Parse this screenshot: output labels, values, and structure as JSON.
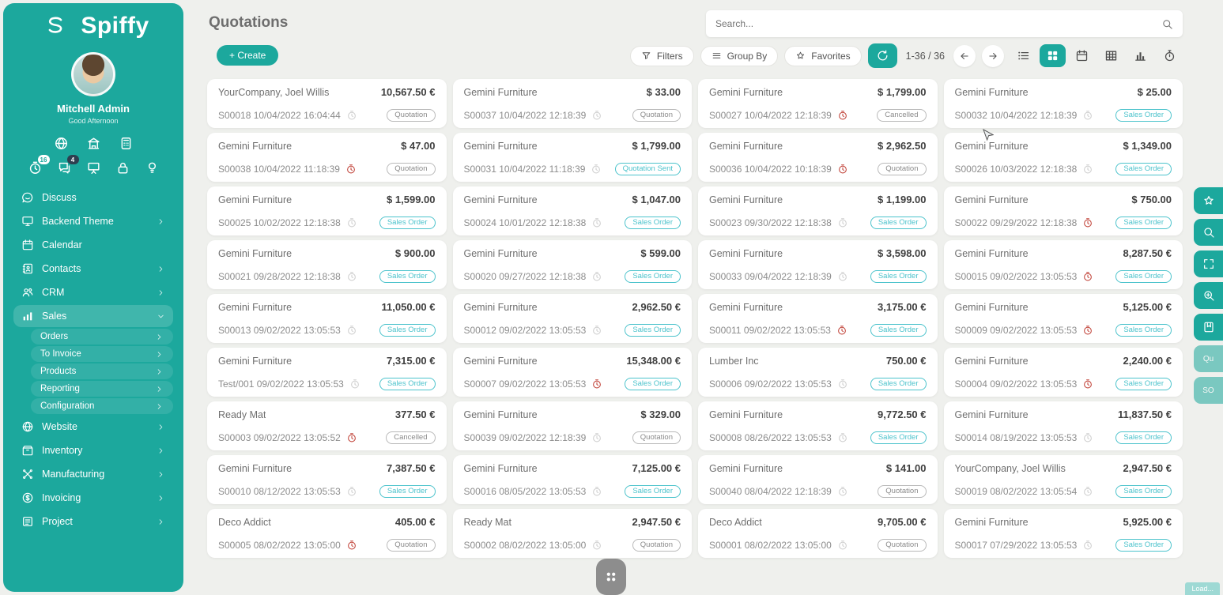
{
  "theme": {
    "accent": "#1ca89d",
    "badge_teal": "#4cc3cc",
    "badge_gray": "#9a9a9a",
    "overdue_red": "#c2453b"
  },
  "sidebar": {
    "brand": "Spiffy",
    "user_name": "Mitchell Admin",
    "greeting": "Good Afternoon",
    "quick_icons": [
      {
        "name": "globe-icon",
        "icon": "website"
      },
      {
        "name": "company-icon",
        "icon": "company"
      },
      {
        "name": "calculator-icon",
        "icon": "calculator"
      }
    ],
    "notification_icons": [
      {
        "name": "activity-clock-icon",
        "icon": "clock",
        "badge": "16"
      },
      {
        "name": "messages-icon",
        "icon": "chat",
        "badge": "4",
        "badge_dark": true
      },
      {
        "name": "presentation-icon",
        "icon": "presentation"
      },
      {
        "name": "lock-icon",
        "icon": "lock"
      },
      {
        "name": "idea-icon",
        "icon": "idea"
      }
    ],
    "menu": [
      {
        "label": "Discuss",
        "icon": "discuss",
        "chevron": null,
        "level": 1
      },
      {
        "label": "Backend Theme",
        "icon": "backend-theme",
        "chevron": "right",
        "level": 1
      },
      {
        "label": "Calendar",
        "icon": "calendar",
        "chevron": null,
        "level": 1
      },
      {
        "label": "Contacts",
        "icon": "contacts",
        "chevron": "right",
        "level": 1
      },
      {
        "label": "CRM",
        "icon": "crm",
        "chevron": "right",
        "level": 1
      },
      {
        "label": "Sales",
        "icon": "sales",
        "chevron": "down",
        "level": 1,
        "active": true
      },
      {
        "label": "Orders",
        "chevron": "right",
        "level": 2
      },
      {
        "label": "To Invoice",
        "chevron": "right",
        "level": 2
      },
      {
        "label": "Products",
        "chevron": "right",
        "level": 2
      },
      {
        "label": "Reporting",
        "chevron": "right",
        "level": 2
      },
      {
        "label": "Configuration",
        "chevron": "right",
        "level": 2
      },
      {
        "label": "Website",
        "icon": "website",
        "chevron": "right",
        "level": 1
      },
      {
        "label": "Inventory",
        "icon": "inventory",
        "chevron": "right",
        "level": 1
      },
      {
        "label": "Manufacturing",
        "icon": "manufacturing",
        "chevron": "right",
        "level": 1
      },
      {
        "label": "Invoicing",
        "icon": "invoicing",
        "chevron": "right",
        "level": 1
      },
      {
        "label": "Project",
        "icon": "project",
        "chevron": "right",
        "level": 1
      }
    ]
  },
  "header": {
    "title": "Quotations",
    "create_label": "+ Create",
    "search_placeholder": "Search..."
  },
  "controls": {
    "filters": "Filters",
    "group_by": "Group By",
    "favorites": "Favorites",
    "pager": "1-36 / 36",
    "views": [
      {
        "icon": "list",
        "name": "list-view"
      },
      {
        "icon": "kanban",
        "name": "kanban-view",
        "active": true
      },
      {
        "icon": "calendar",
        "name": "calendar-view"
      },
      {
        "icon": "pivot",
        "name": "pivot-view"
      },
      {
        "icon": "graph",
        "name": "graph-view"
      },
      {
        "icon": "stopwatch",
        "name": "activity-view"
      }
    ]
  },
  "rail": [
    {
      "icon": "star",
      "name": "favorites-rail-button"
    },
    {
      "icon": "magnifier",
      "name": "search-rail-button"
    },
    {
      "icon": "expand",
      "name": "fullscreen-rail-button"
    },
    {
      "icon": "magnifier-plus",
      "name": "zoom-in-rail-button"
    },
    {
      "icon": "bookmark",
      "name": "bookmark-rail-button"
    },
    {
      "label": "Qu",
      "name": "rail-tab-quotations",
      "muted": true
    },
    {
      "label": "SO",
      "name": "rail-tab-sales-orders",
      "muted": true
    }
  ],
  "footer": {
    "load_label": "Load..."
  },
  "cards": [
    {
      "customer": "YourCompany, Joel Willis",
      "amount": "10,567.50 €",
      "ref": "S00018",
      "datetime": "10/04/2022 16:04:44",
      "overdue": false,
      "badge": "Quotation",
      "badge_style": "gray"
    },
    {
      "customer": "Gemini Furniture",
      "amount": "$ 33.00",
      "ref": "S00037",
      "datetime": "10/04/2022 12:18:39",
      "overdue": false,
      "badge": "Quotation",
      "badge_style": "gray"
    },
    {
      "customer": "Gemini Furniture",
      "amount": "$ 1,799.00",
      "ref": "S00027",
      "datetime": "10/04/2022 12:18:39",
      "overdue": true,
      "badge": "Cancelled",
      "badge_style": "gray"
    },
    {
      "customer": "Gemini Furniture",
      "amount": "$ 25.00",
      "ref": "S00032",
      "datetime": "10/04/2022 12:18:39",
      "overdue": false,
      "badge": "Sales Order",
      "badge_style": "teal"
    },
    {
      "customer": "Gemini Furniture",
      "amount": "$ 47.00",
      "ref": "S00038",
      "datetime": "10/04/2022 11:18:39",
      "overdue": true,
      "badge": "Quotation",
      "badge_style": "gray"
    },
    {
      "customer": "Gemini Furniture",
      "amount": "$ 1,799.00",
      "ref": "S00031",
      "datetime": "10/04/2022 11:18:39",
      "overdue": false,
      "badge": "Quotation Sent",
      "badge_style": "teal"
    },
    {
      "customer": "Gemini Furniture",
      "amount": "$ 2,962.50",
      "ref": "S00036",
      "datetime": "10/04/2022 10:18:39",
      "overdue": true,
      "badge": "Quotation",
      "badge_style": "gray"
    },
    {
      "customer": "Gemini Furniture",
      "amount": "$ 1,349.00",
      "ref": "S00026",
      "datetime": "10/03/2022 12:18:38",
      "overdue": false,
      "badge": "Sales Order",
      "badge_style": "teal"
    },
    {
      "customer": "Gemini Furniture",
      "amount": "$ 1,599.00",
      "ref": "S00025",
      "datetime": "10/02/2022 12:18:38",
      "overdue": false,
      "badge": "Sales Order",
      "badge_style": "teal"
    },
    {
      "customer": "Gemini Furniture",
      "amount": "$ 1,047.00",
      "ref": "S00024",
      "datetime": "10/01/2022 12:18:38",
      "overdue": false,
      "badge": "Sales Order",
      "badge_style": "teal"
    },
    {
      "customer": "Gemini Furniture",
      "amount": "$ 1,199.00",
      "ref": "S00023",
      "datetime": "09/30/2022 12:18:38",
      "overdue": false,
      "badge": "Sales Order",
      "badge_style": "teal"
    },
    {
      "customer": "Gemini Furniture",
      "amount": "$ 750.00",
      "ref": "S00022",
      "datetime": "09/29/2022 12:18:38",
      "overdue": true,
      "badge": "Sales Order",
      "badge_style": "teal"
    },
    {
      "customer": "Gemini Furniture",
      "amount": "$ 900.00",
      "ref": "S00021",
      "datetime": "09/28/2022 12:18:38",
      "overdue": false,
      "badge": "Sales Order",
      "badge_style": "teal"
    },
    {
      "customer": "Gemini Furniture",
      "amount": "$ 599.00",
      "ref": "S00020",
      "datetime": "09/27/2022 12:18:38",
      "overdue": false,
      "badge": "Sales Order",
      "badge_style": "teal"
    },
    {
      "customer": "Gemini Furniture",
      "amount": "$ 3,598.00",
      "ref": "S00033",
      "datetime": "09/04/2022 12:18:39",
      "overdue": false,
      "badge": "Sales Order",
      "badge_style": "teal"
    },
    {
      "customer": "Gemini Furniture",
      "amount": "8,287.50 €",
      "ref": "S00015",
      "datetime": "09/02/2022 13:05:53",
      "overdue": true,
      "badge": "Sales Order",
      "badge_style": "teal"
    },
    {
      "customer": "Gemini Furniture",
      "amount": "11,050.00 €",
      "ref": "S00013",
      "datetime": "09/02/2022 13:05:53",
      "overdue": false,
      "badge": "Sales Order",
      "badge_style": "teal"
    },
    {
      "customer": "Gemini Furniture",
      "amount": "2,962.50 €",
      "ref": "S00012",
      "datetime": "09/02/2022 13:05:53",
      "overdue": false,
      "badge": "Sales Order",
      "badge_style": "teal"
    },
    {
      "customer": "Gemini Furniture",
      "amount": "3,175.00 €",
      "ref": "S00011",
      "datetime": "09/02/2022 13:05:53",
      "overdue": true,
      "badge": "Sales Order",
      "badge_style": "teal"
    },
    {
      "customer": "Gemini Furniture",
      "amount": "5,125.00 €",
      "ref": "S00009",
      "datetime": "09/02/2022 13:05:53",
      "overdue": true,
      "badge": "Sales Order",
      "badge_style": "teal"
    },
    {
      "customer": "Gemini Furniture",
      "amount": "7,315.00 €",
      "ref": "Test/001",
      "datetime": "09/02/2022 13:05:53",
      "overdue": false,
      "badge": "Sales Order",
      "badge_style": "teal"
    },
    {
      "customer": "Gemini Furniture",
      "amount": "15,348.00 €",
      "ref": "S00007",
      "datetime": "09/02/2022 13:05:53",
      "overdue": true,
      "badge": "Sales Order",
      "badge_style": "teal"
    },
    {
      "customer": "Lumber Inc",
      "amount": "750.00 €",
      "ref": "S00006",
      "datetime": "09/02/2022 13:05:53",
      "overdue": false,
      "badge": "Sales Order",
      "badge_style": "teal"
    },
    {
      "customer": "Gemini Furniture",
      "amount": "2,240.00 €",
      "ref": "S00004",
      "datetime": "09/02/2022 13:05:53",
      "overdue": true,
      "badge": "Sales Order",
      "badge_style": "teal"
    },
    {
      "customer": "Ready Mat",
      "amount": "377.50 €",
      "ref": "S00003",
      "datetime": "09/02/2022 13:05:52",
      "overdue": true,
      "badge": "Cancelled",
      "badge_style": "gray"
    },
    {
      "customer": "Gemini Furniture",
      "amount": "$ 329.00",
      "ref": "S00039",
      "datetime": "09/02/2022 12:18:39",
      "overdue": false,
      "badge": "Quotation",
      "badge_style": "gray"
    },
    {
      "customer": "Gemini Furniture",
      "amount": "9,772.50 €",
      "ref": "S00008",
      "datetime": "08/26/2022 13:05:53",
      "overdue": false,
      "badge": "Sales Order",
      "badge_style": "teal"
    },
    {
      "customer": "Gemini Furniture",
      "amount": "11,837.50 €",
      "ref": "S00014",
      "datetime": "08/19/2022 13:05:53",
      "overdue": false,
      "badge": "Sales Order",
      "badge_style": "teal"
    },
    {
      "customer": "Gemini Furniture",
      "amount": "7,387.50 €",
      "ref": "S00010",
      "datetime": "08/12/2022 13:05:53",
      "overdue": false,
      "badge": "Sales Order",
      "badge_style": "teal"
    },
    {
      "customer": "Gemini Furniture",
      "amount": "7,125.00 €",
      "ref": "S00016",
      "datetime": "08/05/2022 13:05:53",
      "overdue": false,
      "badge": "Sales Order",
      "badge_style": "teal"
    },
    {
      "customer": "Gemini Furniture",
      "amount": "$ 141.00",
      "ref": "S00040",
      "datetime": "08/04/2022 12:18:39",
      "overdue": false,
      "badge": "Quotation",
      "badge_style": "gray"
    },
    {
      "customer": "YourCompany, Joel Willis",
      "amount": "2,947.50 €",
      "ref": "S00019",
      "datetime": "08/02/2022 13:05:54",
      "overdue": false,
      "badge": "Sales Order",
      "badge_style": "teal"
    },
    {
      "customer": "Deco Addict",
      "amount": "405.00 €",
      "ref": "S00005",
      "datetime": "08/02/2022 13:05:00",
      "overdue": true,
      "badge": "Quotation",
      "badge_style": "gray"
    },
    {
      "customer": "Ready Mat",
      "amount": "2,947.50 €",
      "ref": "S00002",
      "datetime": "08/02/2022 13:05:00",
      "overdue": false,
      "badge": "Quotation",
      "badge_style": "gray"
    },
    {
      "customer": "Deco Addict",
      "amount": "9,705.00 €",
      "ref": "S00001",
      "datetime": "08/02/2022 13:05:00",
      "overdue": false,
      "badge": "Quotation",
      "badge_style": "gray"
    },
    {
      "customer": "Gemini Furniture",
      "amount": "5,925.00 €",
      "ref": "S00017",
      "datetime": "07/29/2022 13:05:53",
      "overdue": false,
      "badge": "Sales Order",
      "badge_style": "teal"
    }
  ]
}
